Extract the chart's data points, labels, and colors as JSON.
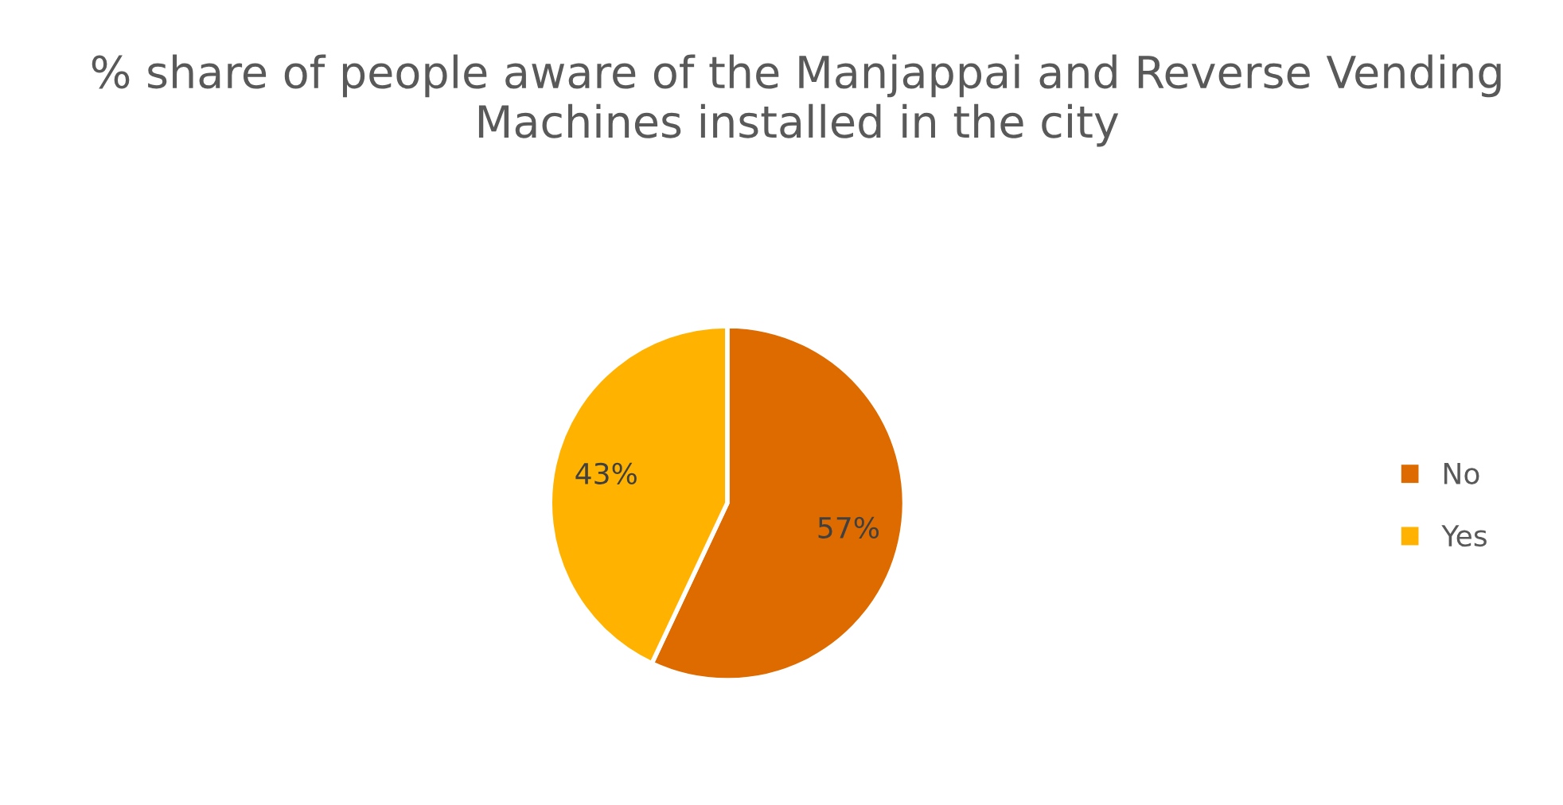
{
  "chart_data": {
    "type": "pie",
    "title": "% share of people aware of the Manjappai and Reverse Vending Machines installed in the city",
    "categories": [
      "No",
      "Yes"
    ],
    "values": [
      57,
      43
    ],
    "colors": [
      "#de6b00",
      "#ffb300"
    ],
    "value_labels": [
      "57%",
      "43%"
    ],
    "legend": "right"
  }
}
